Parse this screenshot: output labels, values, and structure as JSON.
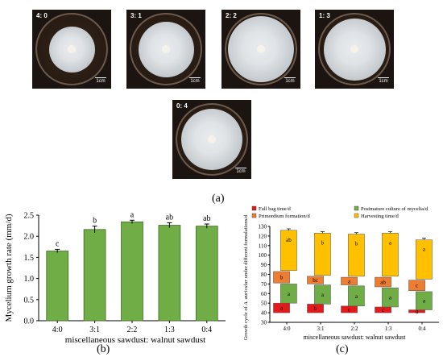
{
  "photos": {
    "items": [
      {
        "label": "4: 0",
        "scale": "1cm"
      },
      {
        "label": "3: 1",
        "scale": "1cm"
      },
      {
        "label": "2: 2",
        "scale": "1cm"
      },
      {
        "label": "1: 3",
        "scale": "1cm"
      },
      {
        "label": "0: 4",
        "scale": "1cm"
      }
    ],
    "panel_label": "(a)"
  },
  "chart_data": [
    {
      "type": "bar",
      "panel_label": "(b)",
      "categories": [
        "4:0",
        "3:1",
        "2:2",
        "1:3",
        "0:4"
      ],
      "values": [
        1.65,
        2.16,
        2.34,
        2.26,
        2.24
      ],
      "errors": [
        0.04,
        0.08,
        0.04,
        0.06,
        0.05
      ],
      "letters": [
        "c",
        "b",
        "a",
        "ab",
        "ab"
      ],
      "xlabel": "miscellaneous sawdust: walnut sawdust",
      "ylabel": "Mycelium growth rate (mm/d)",
      "ylim": [
        0,
        2.5
      ],
      "yticks": [
        "0.0",
        "0.5",
        "1.0",
        "1.5",
        "2.0",
        "2.5"
      ],
      "bar_color": "#70ad47"
    },
    {
      "type": "bar",
      "subtype": "floating-stacked",
      "panel_label": "(c)",
      "categories": [
        "4:0",
        "3:1",
        "2:2",
        "1:3",
        "0:4"
      ],
      "xlabel": "miscellaneous sawdust: walnut sawdust",
      "ylabel_prefix": "Growth cycle of ",
      "ylabel_italic": "A. auricular",
      "ylabel_suffix": "under different formulations/d",
      "ylim": [
        30,
        130
      ],
      "yticks": [
        "30",
        "40",
        "50",
        "60",
        "70",
        "80",
        "90",
        "100",
        "110",
        "120",
        "130"
      ],
      "legend": [
        {
          "name": "Full bag time/d",
          "color": "#e31a1c"
        },
        {
          "name": "Postmature culture of mycelia/d",
          "color": "#70ad47"
        },
        {
          "name": "Primordium formation/d",
          "color": "#ed7d31"
        },
        {
          "name": "Harvesting time/d",
          "color": "#ffc000"
        }
      ],
      "segments": [
        {
          "series": "Full bag time/d",
          "color": "#e31a1c",
          "starts": [
            40,
            40,
            40,
            40,
            40
          ],
          "ends": [
            50,
            49,
            47,
            46,
            43
          ],
          "letters": [
            "a",
            "b",
            "c",
            "c",
            "d"
          ]
        },
        {
          "series": "Postmature culture of mycelia/d",
          "color": "#70ad47",
          "starts": [
            50,
            49,
            47,
            46,
            43
          ],
          "ends": [
            70,
            69,
            68,
            66,
            62
          ],
          "letters": [
            "a",
            "a",
            "a",
            "a",
            "a"
          ]
        },
        {
          "series": "Primordium formation/d",
          "color": "#ed7d31",
          "starts": [
            71,
            70,
            69,
            67,
            63
          ],
          "ends": [
            83,
            78,
            77,
            77,
            74
          ],
          "letters": [
            "b",
            "bc",
            "a",
            "ab",
            "c"
          ]
        },
        {
          "series": "Harvesting time/d",
          "color": "#ffc000",
          "starts": [
            84,
            79,
            78,
            78,
            75
          ],
          "ends": [
            126,
            123,
            122,
            123,
            116
          ],
          "errors": [
            1.5,
            1.5,
            1.5,
            1.5,
            1.8
          ],
          "letters": [
            "ab",
            "b",
            "b",
            "a",
            "a"
          ]
        }
      ]
    }
  ]
}
